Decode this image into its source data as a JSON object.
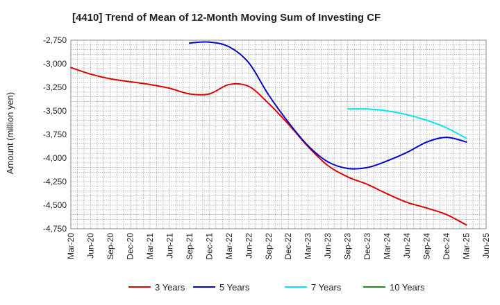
{
  "chart_data": {
    "type": "line",
    "title": "[4410]  Trend of Mean of 12-Month Moving Sum of Investing CF",
    "xlabel": "",
    "ylabel": "Amount (million yen)",
    "ylim": [
      -4750,
      -2750
    ],
    "yticks": [
      -2750,
      -3000,
      -3250,
      -3500,
      -3750,
      -4000,
      -4250,
      -4500,
      -4750
    ],
    "ytick_labels": [
      "-2,750",
      "-3,000",
      "-3,250",
      "-3,500",
      "-3,750",
      "-4,000",
      "-4,250",
      "-4,500",
      "-4,750"
    ],
    "categories": [
      "Mar-20",
      "Jun-20",
      "Sep-20",
      "Dec-20",
      "Mar-21",
      "Jun-21",
      "Sep-21",
      "Dec-21",
      "Mar-22",
      "Jun-22",
      "Sep-22",
      "Dec-22",
      "Mar-23",
      "Jun-23",
      "Sep-23",
      "Dec-23",
      "Mar-24",
      "Jun-24",
      "Sep-24",
      "Dec-24",
      "Mar-25",
      "Jun-25"
    ],
    "grid": true,
    "legend_position": "bottom",
    "series": [
      {
        "name": "3 Years",
        "color": "#dd0000",
        "values": [
          -3040,
          -3110,
          -3160,
          -3190,
          -3220,
          -3260,
          -3320,
          -3320,
          -3220,
          -3240,
          -3420,
          -3640,
          -3880,
          -4080,
          -4200,
          -4280,
          -4380,
          -4470,
          -4530,
          -4600,
          -4710,
          null
        ]
      },
      {
        "name": "5 Years",
        "color": "#0000cc",
        "values": [
          null,
          null,
          null,
          null,
          null,
          null,
          -2780,
          -2770,
          -2820,
          -2990,
          -3330,
          -3620,
          -3870,
          -4040,
          -4110,
          -4100,
          -4030,
          -3940,
          -3830,
          -3780,
          -3830,
          null
        ]
      },
      {
        "name": "7 Years",
        "color": "#00e5ee",
        "values": [
          null,
          null,
          null,
          null,
          null,
          null,
          null,
          null,
          null,
          null,
          null,
          null,
          null,
          null,
          -3480,
          -3480,
          -3500,
          -3540,
          -3600,
          -3680,
          -3790,
          null
        ]
      },
      {
        "name": "10 Years",
        "color": "#228b22",
        "values": [
          null,
          null,
          null,
          null,
          null,
          null,
          null,
          null,
          null,
          null,
          null,
          null,
          null,
          null,
          null,
          null,
          null,
          null,
          null,
          null,
          null,
          null
        ]
      }
    ]
  }
}
